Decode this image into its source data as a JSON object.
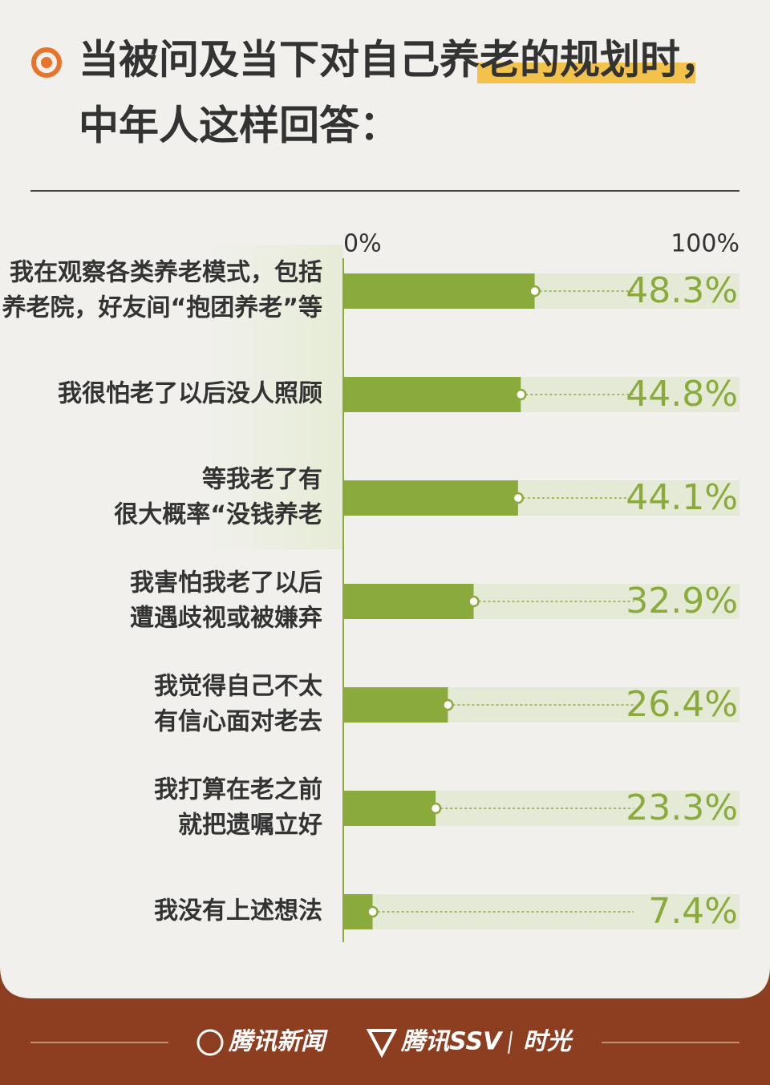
{
  "chart_data": {
    "type": "bar",
    "orientation": "horizontal",
    "title": [
      "当被问及当下对自己养老的规划时，",
      "中年人这样回答："
    ],
    "categories": [
      [
        "我在观察各类养老模式，包括",
        "养老院，好友间“抱团养老”等"
      ],
      [
        "我很怕老了以后没人照顾"
      ],
      [
        "等我老了有",
        "很大概率“没钱养老"
      ],
      [
        "我害怕我老了以后",
        "遭遇歧视或被嫌弃"
      ],
      [
        "我觉得自己不太",
        "有信心面对老去"
      ],
      [
        "我打算在老之前",
        "就把遗嘱立好"
      ],
      [
        "我没有上述想法"
      ]
    ],
    "values": [
      48.3,
      44.8,
      44.1,
      32.9,
      26.4,
      23.3,
      7.4
    ],
    "value_labels": [
      "48.3%",
      "44.8%",
      "44.1%",
      "32.9%",
      "26.4%",
      "23.3%",
      "7.4%"
    ],
    "color": "#8aab3c",
    "xlim": [
      0,
      100
    ],
    "xticks": [
      {
        "value": 0,
        "label": "0%"
      },
      {
        "value": 100,
        "label": "100%"
      }
    ]
  },
  "footer": {
    "logos": [
      "腾讯新闻",
      "腾讯SSV",
      "时光"
    ]
  }
}
